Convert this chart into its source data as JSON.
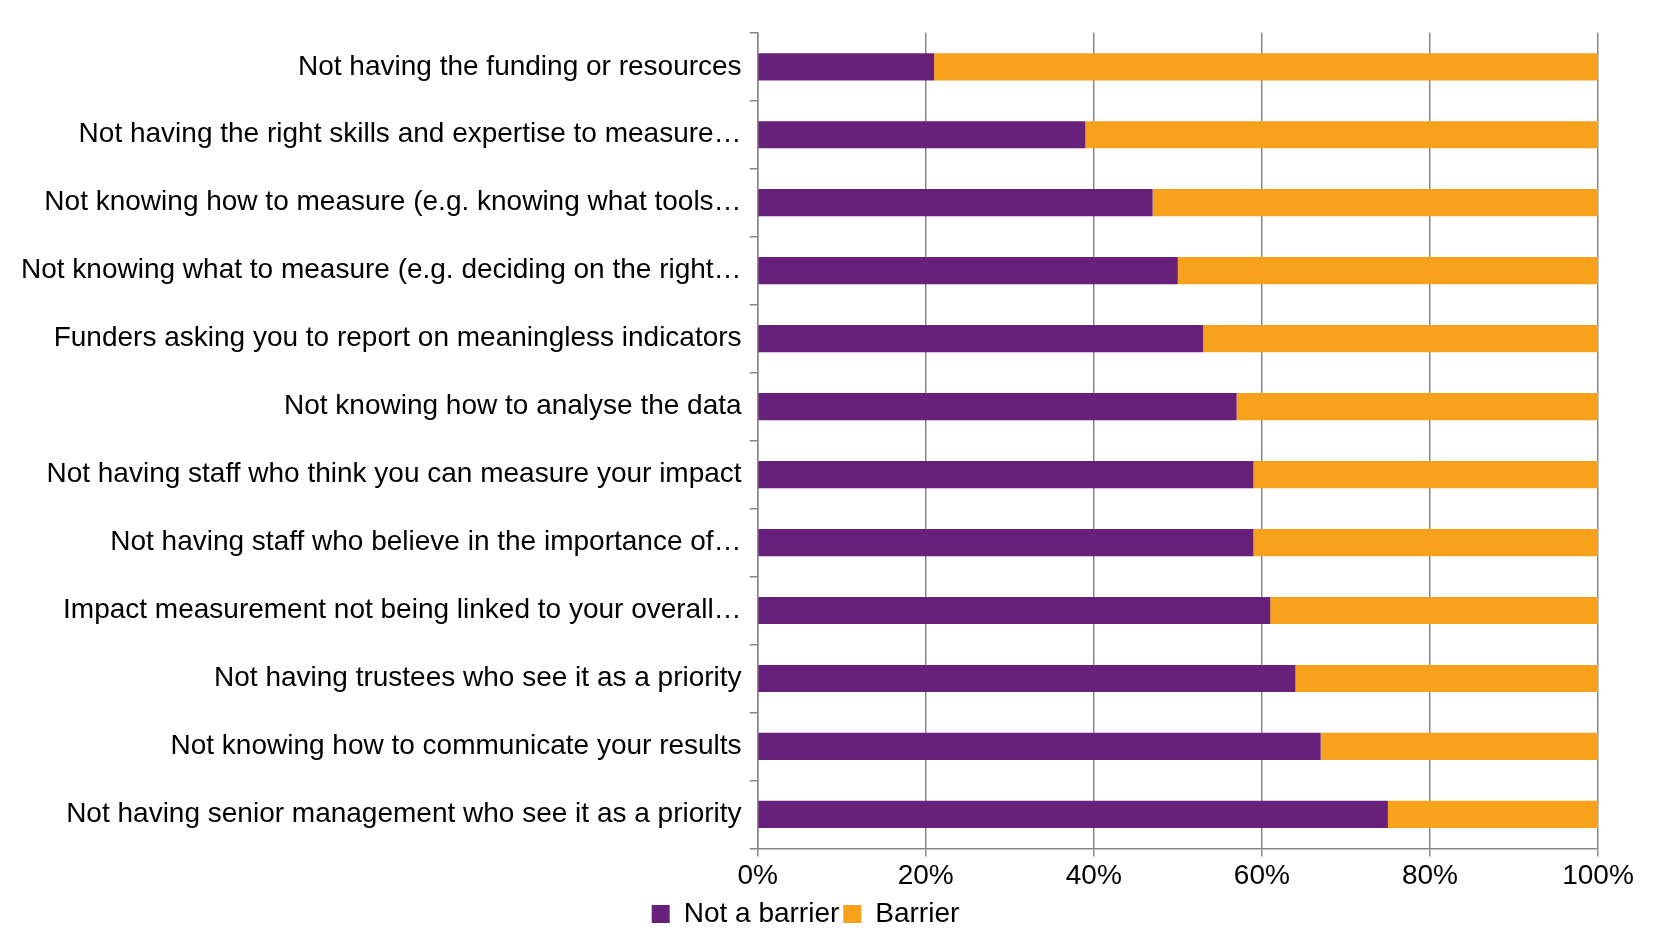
{
  "chart_data": {
    "type": "bar",
    "orientation": "horizontal",
    "stacked": true,
    "categories": [
      "Not having the funding or resources",
      "Not having the right skills and expertise to measure…",
      "Not knowing how to measure (e.g. knowing what tools…",
      "Not knowing what to measure (e.g. deciding on the right…",
      "Funders asking you to report on meaningless indicators",
      "Not knowing how to analyse the data",
      "Not having staff who think you can measure your impact",
      "Not having staff who believe in the importance of…",
      "Impact measurement not being linked to your overall…",
      "Not having trustees who see it as a priority",
      "Not knowing how to communicate your results",
      "Not having senior management who see it as a priority"
    ],
    "series": [
      {
        "name": "Not a barrier",
        "color": "#68217a",
        "values": [
          21,
          39,
          47,
          50,
          53,
          57,
          59,
          59,
          61,
          64,
          67,
          75
        ]
      },
      {
        "name": "Barrier",
        "color": "#f7a11c",
        "values": [
          79,
          61,
          53,
          50,
          47,
          43,
          41,
          41,
          39,
          36,
          33,
          25
        ]
      }
    ],
    "xlim": [
      0,
      100
    ],
    "xticks": [
      {
        "value": 0,
        "label": "0%"
      },
      {
        "value": 20,
        "label": "20%"
      },
      {
        "value": 40,
        "label": "40%"
      },
      {
        "value": 60,
        "label": "60%"
      },
      {
        "value": 80,
        "label": "80%"
      },
      {
        "value": 100,
        "label": "100%"
      }
    ],
    "grid": "x",
    "legend": "bottom"
  }
}
